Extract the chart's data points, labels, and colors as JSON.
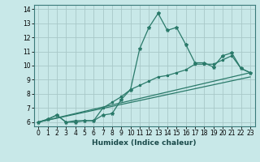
{
  "xlabel": "Humidex (Indice chaleur)",
  "bg_color": "#c8e8e8",
  "line_color": "#2a7a6a",
  "grid_color": "#a8c8c8",
  "xlim": [
    -0.5,
    23.5
  ],
  "ylim": [
    5.7,
    14.3
  ],
  "xticks": [
    0,
    1,
    2,
    3,
    4,
    5,
    6,
    7,
    8,
    9,
    10,
    11,
    12,
    13,
    14,
    15,
    16,
    17,
    18,
    19,
    20,
    21,
    22,
    23
  ],
  "yticks": [
    6,
    7,
    8,
    9,
    10,
    11,
    12,
    13,
    14
  ],
  "line1_x": [
    0,
    1,
    2,
    3,
    4,
    5,
    6,
    7,
    8,
    9,
    10,
    11,
    12,
    13,
    14,
    15,
    16,
    17,
    18,
    19,
    20,
    21,
    22,
    23
  ],
  "line1_y": [
    6.0,
    6.2,
    6.5,
    6.0,
    6.0,
    6.1,
    6.1,
    6.5,
    6.6,
    7.6,
    8.3,
    11.2,
    12.7,
    13.7,
    12.5,
    12.7,
    11.5,
    10.2,
    10.2,
    9.9,
    10.7,
    10.9,
    9.8,
    9.5
  ],
  "line2_x": [
    0,
    1,
    2,
    3,
    4,
    5,
    6,
    7,
    8,
    9,
    10,
    11,
    12,
    13,
    14,
    15,
    16,
    17,
    18,
    19,
    20,
    21,
    22,
    23
  ],
  "line2_y": [
    6.0,
    6.2,
    6.5,
    6.0,
    6.1,
    6.1,
    6.1,
    7.0,
    7.4,
    7.8,
    8.3,
    8.6,
    8.9,
    9.2,
    9.3,
    9.5,
    9.7,
    10.1,
    10.1,
    10.1,
    10.4,
    10.7,
    9.8,
    9.5
  ],
  "line3_x": [
    0,
    23
  ],
  "line3_y": [
    6.0,
    9.5
  ],
  "line4_x": [
    0,
    23
  ],
  "line4_y": [
    6.0,
    9.2
  ],
  "tick_fontsize": 5.5,
  "xlabel_fontsize": 6.5,
  "spine_color": "#3a7a7a"
}
